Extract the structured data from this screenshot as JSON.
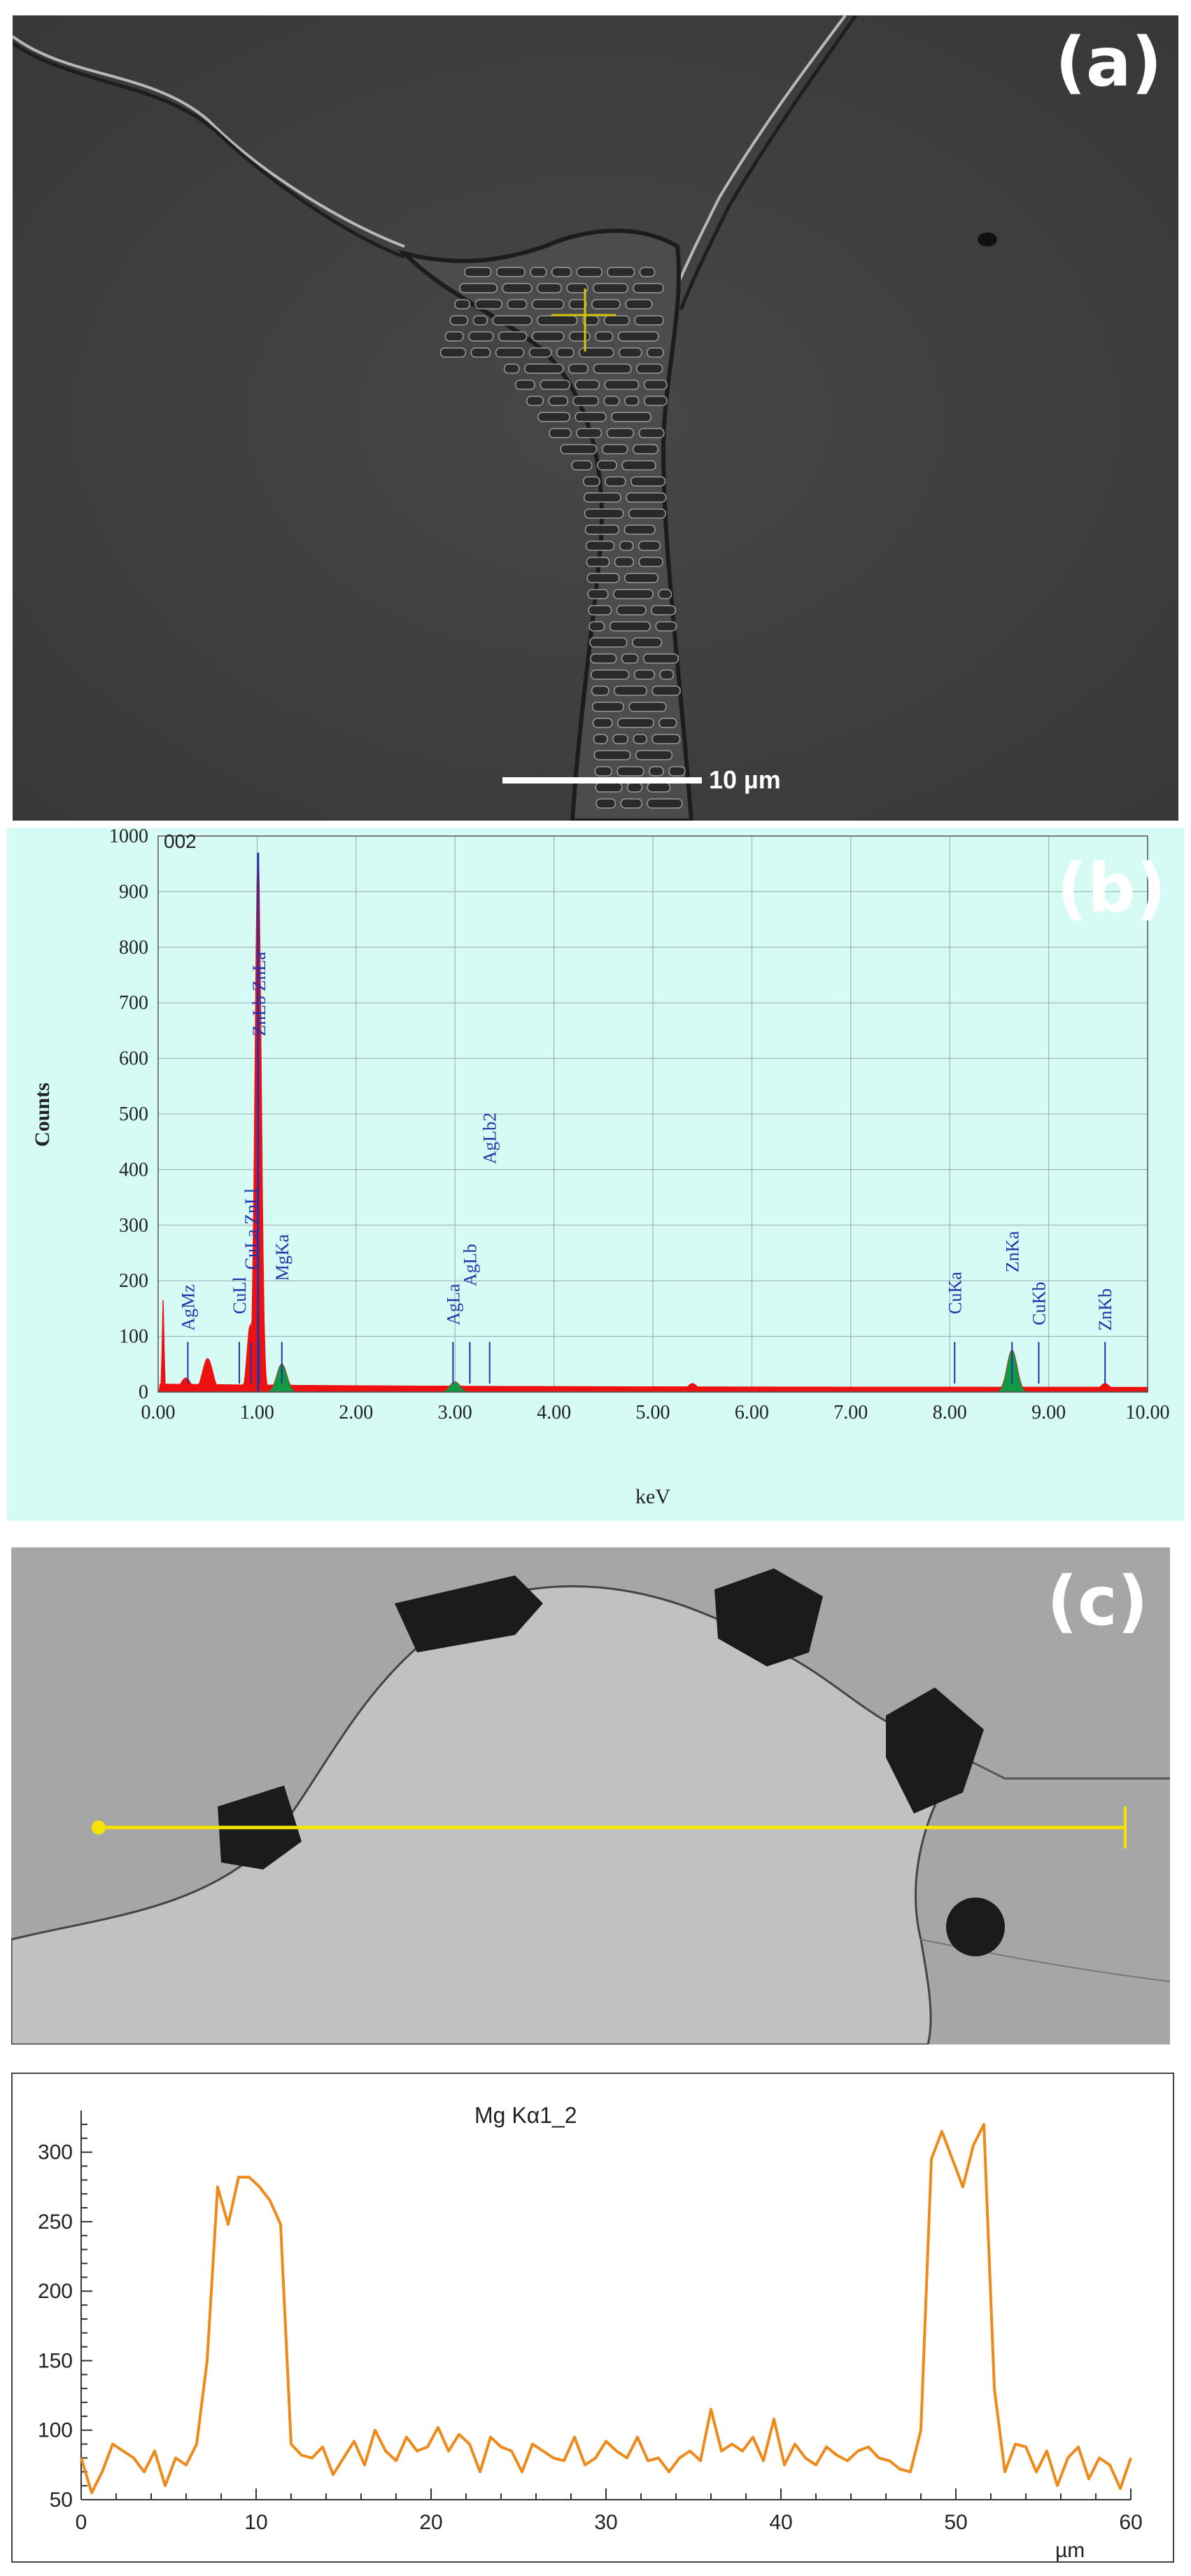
{
  "panels": {
    "a": {
      "label": "(a)",
      "scalebar_text": "10 µm"
    },
    "b": {
      "label": "(b)",
      "spectrum_id": "002"
    },
    "c": {
      "label": "(c)"
    }
  },
  "colors": {
    "spectrum_fill": "#ee1111",
    "spectrum_green": "#119944",
    "marker_blue": "#2233aa",
    "linescan": "#ee8a1a",
    "crosshair": "#d4c410"
  },
  "chart_data": [
    {
      "type": "area",
      "title": "",
      "xlabel": "keV",
      "ylabel": "Counts",
      "xlim": [
        0.0,
        10.0
      ],
      "ylim": [
        0,
        1000
      ],
      "x_ticks": [
        "0.00",
        "1.00",
        "2.00",
        "3.00",
        "4.00",
        "5.00",
        "6.00",
        "7.00",
        "8.00",
        "9.00",
        "10.00"
      ],
      "y_ticks": [
        "0",
        "100",
        "200",
        "300",
        "400",
        "500",
        "600",
        "700",
        "800",
        "900",
        "1000"
      ],
      "grid": true,
      "peaks": [
        {
          "x": 0.05,
          "y": 165
        },
        {
          "x": 0.28,
          "y": 25
        },
        {
          "x": 0.5,
          "y": 60
        },
        {
          "x": 0.93,
          "y": 120
        },
        {
          "x": 1.01,
          "y": 970
        },
        {
          "x": 1.25,
          "y": 50
        },
        {
          "x": 3.0,
          "y": 18
        },
        {
          "x": 5.4,
          "y": 15
        },
        {
          "x": 8.63,
          "y": 75
        },
        {
          "x": 9.57,
          "y": 15
        }
      ],
      "annotations": [
        {
          "text": "AgMz",
          "x": 0.3,
          "label_y": 110
        },
        {
          "text": "CuLl",
          "x": 0.82,
          "label_y": 140
        },
        {
          "text": "CuLa ZnLl",
          "x": 0.94,
          "label_y": 220
        },
        {
          "text": "ZnLb ZnLa",
          "x": 1.02,
          "label_y": 640
        },
        {
          "text": "MgKa",
          "x": 1.25,
          "label_y": 200
        },
        {
          "text": "AgLa",
          "x": 2.98,
          "label_y": 120
        },
        {
          "text": "AgLb",
          "x": 3.15,
          "label_y": 190
        },
        {
          "text": "AgLb2",
          "x": 3.35,
          "label_y": 410
        },
        {
          "text": "CuKa",
          "x": 8.05,
          "label_y": 140
        },
        {
          "text": "ZnKa",
          "x": 8.63,
          "label_y": 215
        },
        {
          "text": "CuKb",
          "x": 8.9,
          "label_y": 120
        },
        {
          "text": "ZnKb",
          "x": 9.57,
          "label_y": 110
        }
      ]
    },
    {
      "type": "line",
      "title": "",
      "xlabel": "µm",
      "ylabel": "",
      "xlim": [
        0,
        60
      ],
      "ylim": [
        50,
        320
      ],
      "x_ticks": [
        "0",
        "10",
        "20",
        "30",
        "40",
        "50",
        "60"
      ],
      "y_ticks": [
        "50",
        "100",
        "150",
        "200",
        "250",
        "300"
      ],
      "grid": false,
      "series": [
        {
          "name": "Mg Kα1_2",
          "x": [
            0,
            0.6,
            1.2,
            1.8,
            2.4,
            3.0,
            3.6,
            4.2,
            4.8,
            5.4,
            6.0,
            6.6,
            7.2,
            7.8,
            8.4,
            9.0,
            9.6,
            10.2,
            10.8,
            11.4,
            12.0,
            12.6,
            13.2,
            13.8,
            14.4,
            15.0,
            15.6,
            16.2,
            16.8,
            17.4,
            18.0,
            18.6,
            19.2,
            19.8,
            20.4,
            21.0,
            21.6,
            22.2,
            22.8,
            23.4,
            24.0,
            24.6,
            25.2,
            25.8,
            26.4,
            27.0,
            27.6,
            28.2,
            28.8,
            29.4,
            30.0,
            30.6,
            31.2,
            31.8,
            32.4,
            33.0,
            33.6,
            34.2,
            34.8,
            35.4,
            36.0,
            36.6,
            37.2,
            37.8,
            38.4,
            39.0,
            39.6,
            40.2,
            40.8,
            41.4,
            42.0,
            42.6,
            43.2,
            43.8,
            44.4,
            45.0,
            45.6,
            46.2,
            46.8,
            47.4,
            48.0,
            48.6,
            49.2,
            49.8,
            50.4,
            51.0,
            51.6,
            52.2,
            52.8,
            53.4,
            54.0,
            54.6,
            55.2,
            55.8,
            56.4,
            57.0,
            57.6,
            58.2,
            58.8,
            59.4,
            60.0
          ],
          "y": [
            80,
            55,
            70,
            90,
            85,
            80,
            70,
            85,
            60,
            80,
            75,
            90,
            150,
            275,
            248,
            282,
            282,
            275,
            265,
            248,
            90,
            82,
            80,
            88,
            68,
            80,
            92,
            75,
            100,
            85,
            78,
            95,
            85,
            88,
            102,
            85,
            97,
            90,
            70,
            95,
            88,
            85,
            70,
            90,
            85,
            80,
            78,
            95,
            75,
            80,
            92,
            85,
            80,
            95,
            78,
            80,
            70,
            80,
            85,
            78,
            115,
            85,
            90,
            85,
            95,
            78,
            108,
            75,
            90,
            80,
            75,
            88,
            82,
            78,
            85,
            88,
            80,
            78,
            72,
            70,
            100,
            295,
            315,
            295,
            275,
            305,
            320,
            130,
            70,
            90,
            88,
            70,
            85,
            60,
            80,
            88,
            65,
            80,
            75,
            58,
            80
          ]
        }
      ]
    }
  ]
}
